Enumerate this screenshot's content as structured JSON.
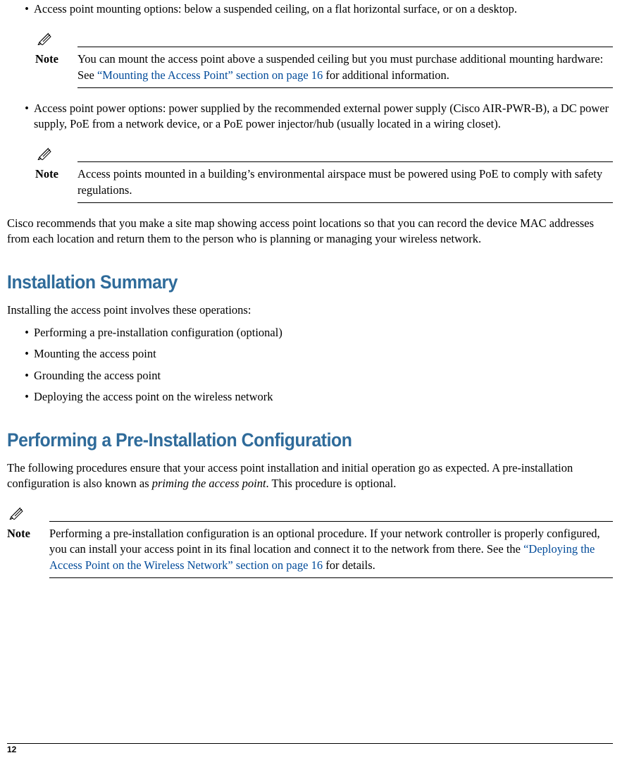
{
  "bullet1": "Access point mounting options: below a suspended ceiling, on a flat horizontal surface, or on a desktop.",
  "note1": {
    "label": "Note",
    "pre": "You can mount the access point above a suspended ceiling but you must purchase additional mounting hardware: See ",
    "link": "“Mounting the Access Point” section on page 16",
    "post": " for additional information."
  },
  "bullet2": "Access point power options: power supplied by the recommended external power supply (Cisco AIR-PWR-B), a DC power supply, PoE from a network device, or a PoE power injector/hub (usually located in a wiring closet).",
  "note2": {
    "label": "Note",
    "text": "Access points mounted in a building’s environmental airspace must be powered using PoE to comply with safety regulations."
  },
  "para_recommend": "Cisco recommends that you make a site map showing access point locations so that you can record the device MAC addresses from each location and return them to the person who is planning or managing your wireless network.",
  "heading_summary": "Installation Summary",
  "summary_intro": "Installing the access point involves these operations:",
  "summary_items": [
    "Performing a pre-installation configuration (optional)",
    "Mounting the access point",
    "Grounding the access point",
    "Deploying the access point on the wireless network"
  ],
  "heading_preinstall": "Performing a Pre-Installation Configuration",
  "preinstall_para_pre": "The following procedures ensure that your access point installation and initial operation go as expected. A pre-installation configuration is also known as ",
  "preinstall_para_em": "priming the access point",
  "preinstall_para_post": ". This procedure is optional.",
  "note3": {
    "label": "Note",
    "pre": "Performing a pre-installation configuration is an optional procedure. If your network controller is properly configured, you can install your access point in its final location and connect it to the network from there. See the ",
    "link": "“Deploying the Access Point on the Wireless Network” section on page 16",
    "post": " for details."
  },
  "page_number": "12",
  "colors": {
    "heading": "#2f6b9a",
    "link": "#004a99",
    "text": "#000000",
    "background": "#ffffff"
  },
  "fonts": {
    "body_family": "Georgia, serif",
    "body_size_pt": 12,
    "heading_family": "Arial Narrow, Arial, sans-serif",
    "heading_size_pt": 20,
    "heading_weight": "bold"
  }
}
